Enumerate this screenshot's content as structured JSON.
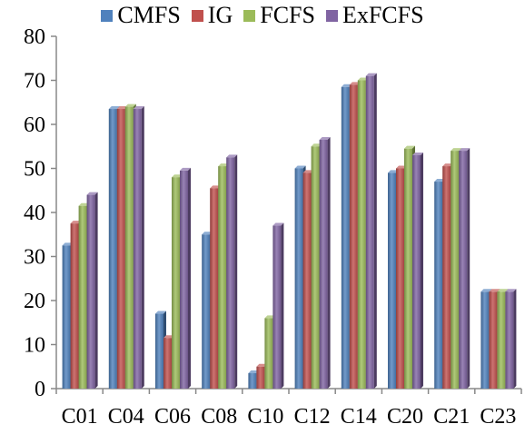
{
  "chart_data": {
    "type": "bar",
    "title": "",
    "xlabel": "",
    "ylabel": "",
    "categories": [
      "C01",
      "C04",
      "C06",
      "C08",
      "C10",
      "C12",
      "C14",
      "C20",
      "C21",
      "C23"
    ],
    "ylim": [
      0,
      80
    ],
    "yticks": [
      0,
      10,
      20,
      30,
      40,
      50,
      60,
      70,
      80
    ],
    "grid": false,
    "legend_position": "top",
    "series": [
      {
        "name": "CMFS",
        "color": "#4F81BD",
        "values": [
          32.5,
          63.5,
          17,
          35,
          3.5,
          50,
          68.5,
          49,
          47,
          22
        ]
      },
      {
        "name": "IG",
        "color": "#C0504D",
        "values": [
          37.5,
          63.5,
          11.5,
          45.5,
          5,
          49,
          69,
          50,
          50.5,
          22
        ]
      },
      {
        "name": "FCFS",
        "color": "#9BBB59",
        "values": [
          41.5,
          64,
          48,
          50.5,
          16,
          55,
          70,
          54.5,
          54,
          22
        ]
      },
      {
        "name": "ExFCFS",
        "color": "#8064A2",
        "values": [
          44,
          63.5,
          49.5,
          52.5,
          37,
          56.5,
          71,
          53,
          54,
          22
        ]
      }
    ]
  }
}
